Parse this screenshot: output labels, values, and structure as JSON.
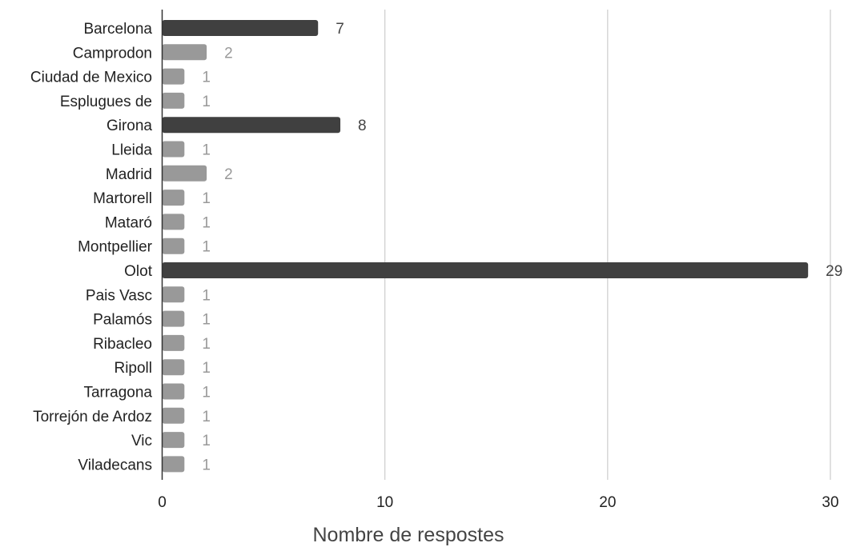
{
  "chart_data": {
    "type": "bar",
    "orientation": "horizontal",
    "xlabel": "Nombre de respostes",
    "ylabel": "",
    "xlim": [
      0,
      30
    ],
    "x_ticks": [
      "0",
      "10",
      "20",
      "30"
    ],
    "grid": true,
    "categories": [
      "Barcelona",
      "Camprodon",
      "Ciudad de Mexico",
      "Esplugues de",
      "Girona",
      "Lleida",
      "Madrid",
      "Martorell",
      "Mataró",
      "Montpellier",
      "Olot",
      "Pais Vasc",
      "Palamós",
      "Ribacleo",
      "Ripoll",
      "Tarragona",
      "Torrejón de Ardoz",
      "Vic",
      "Viladecans"
    ],
    "values": [
      7,
      2,
      1,
      1,
      8,
      1,
      2,
      1,
      1,
      1,
      29,
      1,
      1,
      1,
      1,
      1,
      1,
      1,
      1
    ],
    "value_labels": [
      "7",
      "2",
      "1",
      "1",
      "8",
      "1",
      "2",
      "1",
      "1",
      "1",
      "29",
      "1",
      "1",
      "1",
      "1",
      "1",
      "1",
      "1",
      "1"
    ],
    "colors": {
      "highlight_bar": "#404040",
      "default_bar": "#999999",
      "highlight_label": "#444444",
      "default_label": "#999999",
      "grid": "#cccccc",
      "axis": "#333333"
    },
    "highlight_threshold": 5
  }
}
